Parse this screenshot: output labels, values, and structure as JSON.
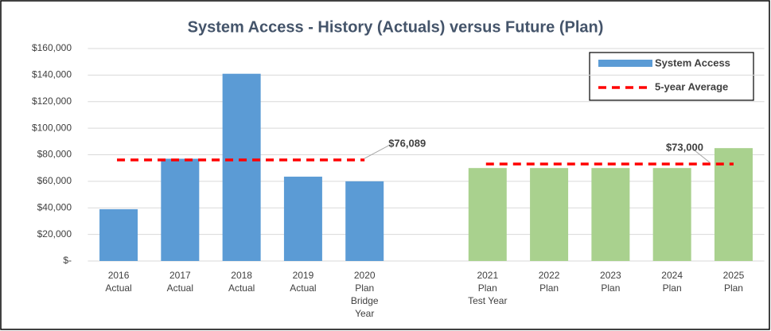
{
  "chart_data": {
    "type": "bar",
    "title": "System Access - History (Actuals) versus Future (Plan)",
    "categories": [
      [
        "2016",
        "Actual"
      ],
      [
        "2017",
        "Actual"
      ],
      [
        "2018",
        "Actual"
      ],
      [
        "2019",
        "Actual"
      ],
      [
        "2020",
        "Plan",
        "Bridge",
        "Year"
      ],
      null,
      [
        "2021",
        "Plan",
        "Test Year"
      ],
      [
        "2022",
        "Plan"
      ],
      [
        "2023",
        "Plan"
      ],
      [
        "2024",
        "Plan"
      ],
      [
        "2025",
        "Plan"
      ]
    ],
    "series": [
      {
        "name": "System Access",
        "type": "bar",
        "color": "#5b9bd5",
        "colors": [
          "#5b9bd5",
          "#5b9bd5",
          "#5b9bd5",
          "#5b9bd5",
          "#5b9bd5",
          null,
          "#a9d18e",
          "#a9d18e",
          "#a9d18e",
          "#a9d18e",
          "#a9d18e"
        ],
        "values": [
          39000,
          77000,
          141000,
          63500,
          60000,
          null,
          70000,
          70000,
          70000,
          70000,
          85000
        ]
      },
      {
        "name": "5-year Average",
        "type": "line",
        "color": "#ff0000",
        "values": [
          76089,
          76089,
          76089,
          76089,
          76089,
          null,
          73000,
          73000,
          73000,
          73000,
          73000
        ]
      }
    ],
    "annotations": [
      "$76,089",
      "$73,000"
    ],
    "ylim": [
      0,
      160000
    ],
    "yticks": [
      {
        "value": 0,
        "label": "$-"
      },
      {
        "value": 20000,
        "label": "$20,000"
      },
      {
        "value": 40000,
        "label": "$40,000"
      },
      {
        "value": 60000,
        "label": "$60,000"
      },
      {
        "value": 80000,
        "label": "$80,000"
      },
      {
        "value": 100000,
        "label": "$100,000"
      },
      {
        "value": 120000,
        "label": "$120,000"
      },
      {
        "value": 140000,
        "label": "$140,000"
      },
      {
        "value": 160000,
        "label": "$160,000"
      }
    ],
    "grid": true,
    "legend": "upper right"
  }
}
